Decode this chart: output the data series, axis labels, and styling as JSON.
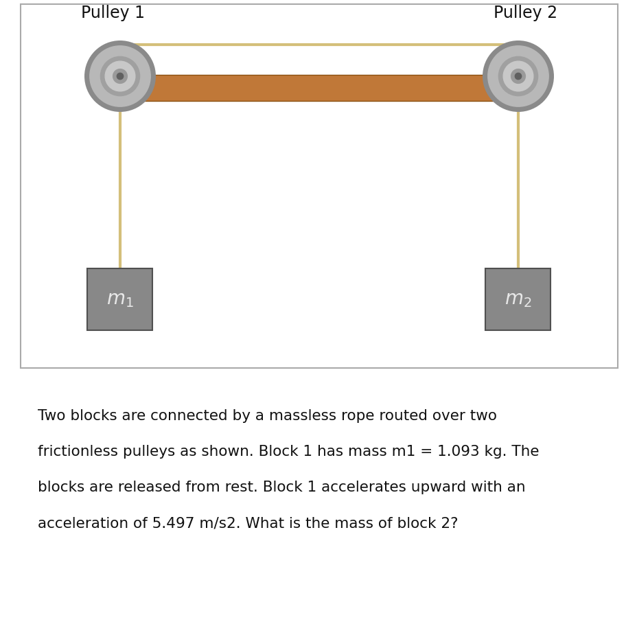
{
  "bg_color": "#ffffff",
  "rope_color": "#d4bf7a",
  "plank_color": "#c07838",
  "plank_edge": "#8b5010",
  "pulley_rim": "#8a8a8a",
  "pulley_face": "#b8b8b8",
  "pulley_face2": "#c8c8c8",
  "pulley_hub": "#9a9a9a",
  "pulley_dot": "#606060",
  "block_face": "#888888",
  "block_edge": "#505050",
  "block_text": "#e8e8e8",
  "box_edge": "#aaaaaa",
  "label_color": "#111111",
  "text_color": "#111111",
  "pulley1_label": "Pulley 1",
  "pulley2_label": "Pulley 2",
  "block1_label": "$m_1$",
  "block2_label": "$m_2$",
  "problem_text_line1": "Two blocks are connected by a massless rope routed over two",
  "problem_text_line2": "frictionless pulleys as shown. Block 1 has mass m1 = 1.093 kg. The",
  "problem_text_line3": "blocks are released from rest. Block 1 accelerates upward with an",
  "problem_text_line4": "acceleration of 5.497 m/s2. What is the mass of block 2?",
  "fig_width": 9.29,
  "fig_height": 9.06,
  "dpi": 100
}
